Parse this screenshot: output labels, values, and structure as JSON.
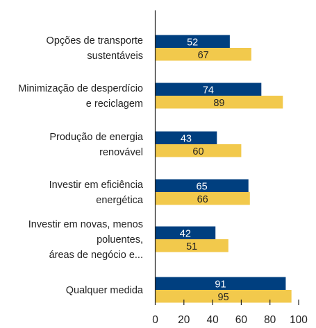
{
  "chart_data": {
    "type": "bar",
    "orientation": "horizontal",
    "categories": [
      [
        "Opções de transporte",
        "sustentáveis"
      ],
      [
        "Minimização de desperdício",
        "e reciclagem"
      ],
      [
        "Produção de energia",
        "renovável"
      ],
      [
        "Investir em eficiência",
        "energética"
      ],
      [
        "Investir em novas, menos",
        "poluentes,",
        "áreas de negócio e..."
      ],
      [
        "Qualquer medida"
      ]
    ],
    "series": [
      {
        "values": [
          52,
          74,
          43,
          65,
          42,
          91
        ],
        "color": "#003f7f",
        "label_color": "#ffffff"
      },
      {
        "values": [
          67,
          89,
          60,
          66,
          51,
          95
        ],
        "color": "#f2c94c",
        "label_color": "#222222"
      }
    ],
    "xlim": [
      0,
      100
    ],
    "xticks": [
      "0",
      "20",
      "40",
      "60",
      "80",
      "100"
    ],
    "grid": false,
    "legend": "none"
  }
}
